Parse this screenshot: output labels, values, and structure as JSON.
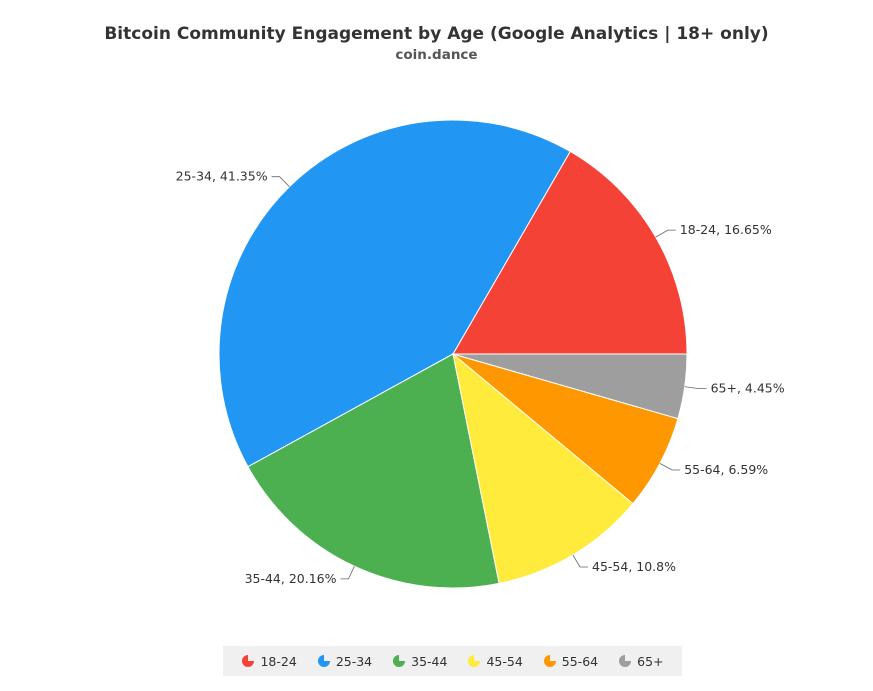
{
  "title": "Bitcoin Community Engagement by Age (Google Analytics | 18+ only)",
  "subtitle": "coin.dance",
  "chart_data": {
    "type": "pie",
    "title": "Bitcoin Community Engagement by Age (Google Analytics | 18+ only)",
    "subtitle": "coin.dance",
    "legend_position": "bottom",
    "slices": [
      {
        "label": "18-24",
        "value": 16.65,
        "display": "18-24, 16.65%",
        "color": "#f44336"
      },
      {
        "label": "25-34",
        "value": 41.35,
        "display": "25-34, 41.35%",
        "color": "#2196f3"
      },
      {
        "label": "35-44",
        "value": 20.16,
        "display": "35-44, 20.16%",
        "color": "#4caf50"
      },
      {
        "label": "45-54",
        "value": 10.8,
        "display": "45-54, 10.8%",
        "color": "#ffeb3b"
      },
      {
        "label": "55-64",
        "value": 6.59,
        "display": "55-64, 6.59%",
        "color": "#ff9800"
      },
      {
        "label": "65+",
        "value": 4.45,
        "display": "65+, 4.45%",
        "color": "#9e9e9e"
      }
    ]
  }
}
